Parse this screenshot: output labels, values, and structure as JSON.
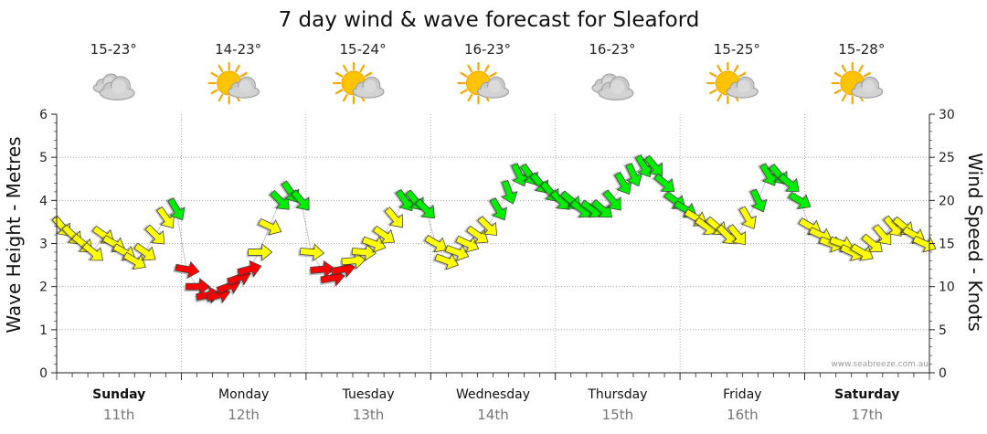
{
  "chart_data": {
    "type": "line",
    "title": "7 day wind & wave forecast for Sleaford",
    "ylabel": "Wave Height - Metres",
    "ylabel_right": "Wind Speed - Knots",
    "ylim": [
      0,
      6
    ],
    "ylim_right": [
      0,
      30
    ],
    "yticks": [
      "0",
      "1",
      "2",
      "3",
      "4",
      "5",
      "6"
    ],
    "yticks_right": [
      "0",
      "5",
      "10",
      "15",
      "20",
      "25",
      "30"
    ],
    "grid": true,
    "credit": "www.seabreeze.com.au",
    "colors": {
      "light": "#ffff00",
      "moderate": "#00ee00",
      "strong": "#ff0000",
      "grid": "#9a9a9a"
    },
    "days": [
      {
        "name": "Sunday",
        "date": "11th",
        "temp": "15-23°",
        "icon": "cloudy-icon",
        "bold": true
      },
      {
        "name": "Monday",
        "date": "12th",
        "temp": "14-23°",
        "icon": "partly-cloudy-icon",
        "bold": false
      },
      {
        "name": "Tuesday",
        "date": "13th",
        "temp": "15-24°",
        "icon": "partly-cloudy-icon",
        "bold": false
      },
      {
        "name": "Wednesday",
        "date": "14th",
        "temp": "16-23°",
        "icon": "partly-cloudy-icon",
        "bold": false
      },
      {
        "name": "Thursday",
        "date": "15th",
        "temp": "16-23°",
        "icon": "cloudy-icon",
        "bold": false
      },
      {
        "name": "Friday",
        "date": "16th",
        "temp": "15-25°",
        "icon": "partly-cloudy-icon",
        "bold": false
      },
      {
        "name": "Saturday",
        "date": "17th",
        "temp": "15-28°",
        "icon": "partly-cloudy-icon",
        "bold": true
      }
    ],
    "wind_series": {
      "name": "Wind Speed - Knots",
      "days": [
        [
          17,
          16,
          15,
          14,
          16,
          15,
          14,
          13,
          14,
          16,
          18,
          19
        ],
        [
          12,
          10,
          9,
          9,
          10,
          11,
          12,
          14,
          17,
          20,
          21,
          20
        ],
        [
          14,
          12,
          11,
          12,
          13,
          14,
          15,
          16,
          18,
          20,
          20,
          19
        ],
        [
          15,
          13,
          14,
          15,
          16,
          17,
          19,
          21,
          23,
          23,
          22,
          21
        ],
        [
          20,
          20,
          19,
          19,
          19,
          20,
          22,
          23,
          24,
          24,
          22,
          20
        ],
        [
          19,
          18,
          17,
          17,
          16,
          16,
          18,
          20,
          23,
          23,
          22,
          20
        ],
        [
          17,
          16,
          15,
          15,
          14,
          14,
          15,
          16,
          17,
          17,
          16,
          15
        ]
      ],
      "direction_deg": [
        [
          320,
          315,
          310,
          310,
          305,
          300,
          300,
          300,
          305,
          315,
          325,
          330
        ],
        [
          280,
          270,
          260,
          255,
          250,
          250,
          255,
          270,
          295,
          315,
          325,
          320
        ],
        [
          275,
          265,
          260,
          260,
          265,
          275,
          290,
          305,
          320,
          325,
          320,
          315
        ],
        [
          300,
          290,
          290,
          295,
          305,
          315,
          330,
          340,
          335,
          325,
          320,
          320
        ],
        [
          315,
          310,
          305,
          305,
          310,
          320,
          330,
          335,
          330,
          320,
          310,
          305
        ],
        [
          300,
          300,
          305,
          310,
          315,
          320,
          330,
          335,
          330,
          320,
          310,
          300
        ],
        [
          300,
          295,
          290,
          290,
          295,
          300,
          310,
          320,
          320,
          310,
          300,
          295
        ]
      ]
    }
  }
}
